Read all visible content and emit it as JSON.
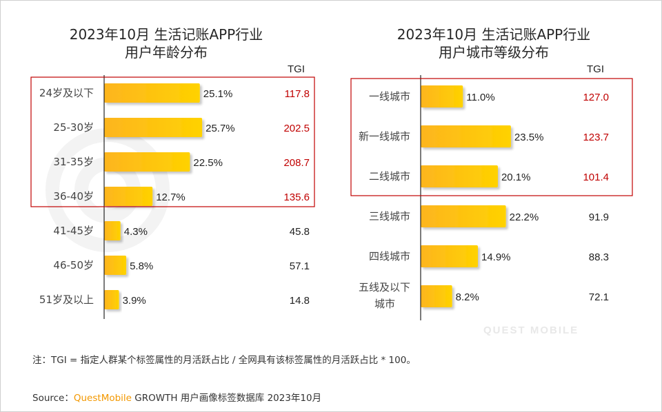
{
  "chart_data": [
    {
      "type": "bar",
      "orientation": "horizontal",
      "title": "2023年10月 生活记账APP行业",
      "subtitle": "用户年龄分布",
      "tgi_header": "TGI",
      "categories": [
        "24岁及以下",
        "25-30岁",
        "31-35岁",
        "36-40岁",
        "41-45岁",
        "46-50岁",
        "51岁及以上"
      ],
      "values": [
        25.1,
        25.7,
        22.5,
        12.7,
        4.3,
        5.8,
        3.9
      ],
      "value_labels": [
        "25.1%",
        "25.7%",
        "22.5%",
        "12.7%",
        "4.3%",
        "5.8%",
        "3.9%"
      ],
      "tgi": [
        "117.8",
        "202.5",
        "208.7",
        "135.6",
        "45.8",
        "57.1",
        "14.8"
      ],
      "highlighted": [
        true,
        true,
        true,
        true,
        false,
        false,
        false
      ],
      "unit": "%",
      "xlim": [
        0,
        30
      ]
    },
    {
      "type": "bar",
      "orientation": "horizontal",
      "title": "2023年10月 生活记账APP行业",
      "subtitle": "用户城市等级分布",
      "tgi_header": "TGI",
      "categories": [
        "一线城市",
        "新一线城市",
        "二线城市",
        "三线城市",
        "四线城市",
        "五线及以下城市"
      ],
      "category_lines": [
        [
          "一线城市"
        ],
        [
          "新一线城市"
        ],
        [
          "二线城市"
        ],
        [
          "三线城市"
        ],
        [
          "四线城市"
        ],
        [
          "五线及以下",
          "城市"
        ]
      ],
      "values": [
        11.0,
        23.5,
        20.1,
        22.2,
        14.9,
        8.2
      ],
      "value_labels": [
        "11.0%",
        "23.5%",
        "20.1%",
        "22.2%",
        "14.9%",
        "8.2%"
      ],
      "tgi": [
        "127.0",
        "123.7",
        "101.4",
        "91.9",
        "88.3",
        "72.1"
      ],
      "highlighted": [
        true,
        true,
        true,
        false,
        false,
        false
      ],
      "unit": "%",
      "xlim": [
        0,
        30
      ]
    }
  ],
  "colors": {
    "bar_start": "#fdb51f",
    "bar_end": "#ffd200",
    "highlight_box": "#c00000",
    "tgi_highlight": "#c00000",
    "tgi_normal": "#222222",
    "brand": "#f39800"
  },
  "watermark": "QUEST MOBILE",
  "footnote": "注：TGI = 指定人群某个标签属性的月活跃占比 / 全网具有该标签属性的月活跃占比 * 100。",
  "source": {
    "prefix": "Source：",
    "brand": "QuestMobile",
    "text": "GROWTH 用户画像标签数据库 2023年10月"
  }
}
